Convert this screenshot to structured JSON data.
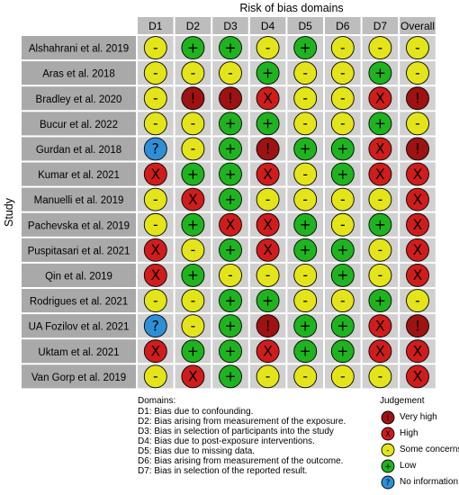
{
  "chart_data": {
    "type": "table",
    "title": "Risk of bias domains",
    "ylabel": "Study",
    "columns": [
      "D1",
      "D2",
      "D3",
      "D4",
      "D5",
      "D6",
      "D7",
      "Overall"
    ],
    "studies": [
      {
        "name": "Alshahrani et al. 2019",
        "judgements": [
          "some",
          "low",
          "low",
          "some",
          "low",
          "some",
          "some",
          "some"
        ]
      },
      {
        "name": "Aras et al. 2018",
        "judgements": [
          "some",
          "some",
          "some",
          "low",
          "some",
          "some",
          "low",
          "some"
        ]
      },
      {
        "name": "Bradley et al. 2020",
        "judgements": [
          "some",
          "veryhigh",
          "veryhigh",
          "high",
          "some",
          "some",
          "high",
          "veryhigh"
        ]
      },
      {
        "name": "Bucur et al. 2022",
        "judgements": [
          "some",
          "some",
          "low",
          "low",
          "some",
          "some",
          "low",
          "some"
        ]
      },
      {
        "name": "Gurdan et al. 2018",
        "judgements": [
          "noinfo",
          "some",
          "low",
          "veryhigh",
          "low",
          "low",
          "high",
          "veryhigh"
        ]
      },
      {
        "name": "Kumar et al. 2021",
        "judgements": [
          "high",
          "low",
          "low",
          "high",
          "some",
          "low",
          "high",
          "high"
        ]
      },
      {
        "name": "Manuelli et al. 2019",
        "judgements": [
          "some",
          "high",
          "low",
          "some",
          "some",
          "some",
          "some",
          "high"
        ]
      },
      {
        "name": "Pachevska et al. 2019",
        "judgements": [
          "some",
          "low",
          "high",
          "high",
          "low",
          "some",
          "low",
          "high"
        ]
      },
      {
        "name": "Puspitasari et al. 2021",
        "judgements": [
          "high",
          "some",
          "low",
          "high",
          "low",
          "low",
          "some",
          "high"
        ]
      },
      {
        "name": "Qin et al. 2019",
        "judgements": [
          "high",
          "low",
          "some",
          "some",
          "some",
          "low",
          "some",
          "high"
        ]
      },
      {
        "name": "Rodrigues et al. 2021",
        "judgements": [
          "some",
          "some",
          "low",
          "low",
          "some",
          "some",
          "low",
          "some"
        ]
      },
      {
        "name": "UA Fozilov et al. 2021",
        "judgements": [
          "noinfo",
          "some",
          "low",
          "veryhigh",
          "low",
          "low",
          "high",
          "veryhigh"
        ]
      },
      {
        "name": "Uktam et al. 2021",
        "judgements": [
          "high",
          "low",
          "low",
          "high",
          "low",
          "low",
          "high",
          "high"
        ]
      },
      {
        "name": "Van Gorp et al. 2019",
        "judgements": [
          "some",
          "high",
          "low",
          "some",
          "some",
          "some",
          "some",
          "high"
        ]
      }
    ],
    "domains_title": "Domains:",
    "domains": [
      "D1: Bias due to confounding.",
      "D2: Bias arising from measurement of the exposure.",
      "D3: Bias in selection of participants into the study",
      "D4: Bias due to post-exposure interventions.",
      "D5: Bias due to missing data.",
      "D6: Bias arising from measurement of the outcome.",
      "D7: Bias in selection of the reported result."
    ],
    "legend_title": "Judgement",
    "legend": [
      {
        "key": "veryhigh",
        "label": "Very high",
        "symbol": "!",
        "color": "#9e1212"
      },
      {
        "key": "high",
        "label": "High",
        "symbol": "X",
        "color": "#d11c1c"
      },
      {
        "key": "some",
        "label": "Some concerns",
        "symbol": "-",
        "color": "#e4e41a"
      },
      {
        "key": "low",
        "label": "Low",
        "symbol": "+",
        "color": "#1fb41f"
      },
      {
        "key": "noinfo",
        "label": "No information",
        "symbol": "?",
        "color": "#2e8fd6"
      }
    ],
    "colors": {
      "cell_background": "#d0d0d0",
      "header_background": "#bdbdbd",
      "study_label_background": "#a9a9a9"
    }
  }
}
